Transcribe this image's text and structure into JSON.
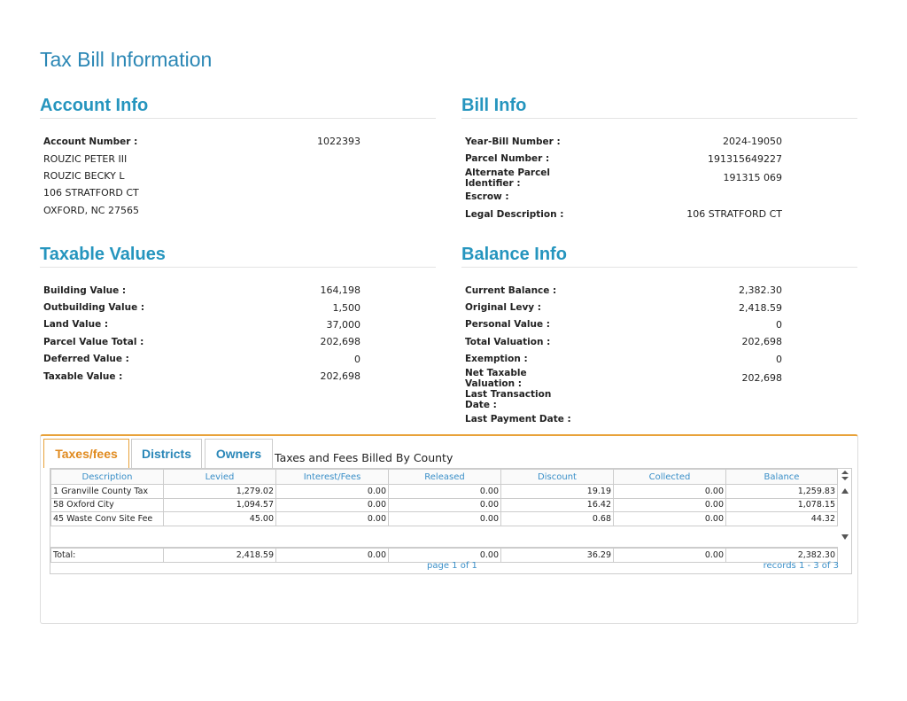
{
  "title": "Tax Bill Information",
  "account_info": {
    "heading": "Account Info",
    "rows": [
      {
        "label": "Account Number :",
        "value": "1022393"
      }
    ],
    "address": [
      "ROUZIC PETER III",
      "ROUZIC BECKY L",
      "106 STRATFORD CT",
      "OXFORD, NC 27565"
    ]
  },
  "bill_info": {
    "heading": "Bill Info",
    "rows": [
      {
        "label": "Year-Bill Number :",
        "value": "2024-19050"
      },
      {
        "label": "Parcel Number :",
        "value": "191315649227"
      },
      {
        "label": "Alternate Parcel Identifier :",
        "value": "191315 069"
      },
      {
        "label": "Escrow :"
      },
      {
        "label": "Legal Description :",
        "value": "106 STRATFORD CT"
      }
    ]
  },
  "taxable_values": {
    "heading": "Taxable Values",
    "rows": [
      {
        "label": "Building Value :",
        "value": "164,198"
      },
      {
        "label": "Outbuilding Value :",
        "value": "1,500"
      },
      {
        "label": "Land Value :",
        "value": "37,000"
      },
      {
        "label": "Parcel Value Total :",
        "value": "202,698"
      },
      {
        "label": "Deferred Value :",
        "value": "0"
      },
      {
        "label": "Taxable Value :",
        "value": "202,698"
      }
    ]
  },
  "balance_info": {
    "heading": "Balance Info",
    "rows": [
      {
        "label": "Current Balance :",
        "value": "2,382.30"
      },
      {
        "label": "Original Levy :",
        "value": "2,418.59"
      },
      {
        "label": "Personal Value :",
        "value": "0"
      },
      {
        "label": "Total Valuation :",
        "value": "202,698"
      },
      {
        "label": "Exemption :",
        "value": "0"
      },
      {
        "label": "Net Taxable Valuation :",
        "value": "202,698"
      },
      {
        "label": "Last Transaction Date :"
      },
      {
        "label": "Last Payment Date :"
      }
    ]
  },
  "tabs": [
    "Taxes/fees",
    "Districts",
    "Owners"
  ],
  "table": {
    "caption": "Taxes and Fees Billed By County",
    "columns": [
      "Description",
      "Levied",
      "Interest/Fees",
      "Released",
      "Discount",
      "Collected",
      "Balance"
    ],
    "rows": [
      [
        "1 Granville County Tax",
        "1,279.02",
        "0.00",
        "0.00",
        "19.19",
        "0.00",
        "1,259.83"
      ],
      [
        "58 Oxford City",
        "1,094.57",
        "0.00",
        "0.00",
        "16.42",
        "0.00",
        "1,078.15"
      ],
      [
        "45 Waste Conv Site Fee",
        "45.00",
        "0.00",
        "0.00",
        "0.68",
        "0.00",
        "44.32"
      ]
    ],
    "total": [
      "Total:",
      "2,418.59",
      "0.00",
      "0.00",
      "36.29",
      "0.00",
      "2,382.30"
    ],
    "pager": "page 1 of 1",
    "records": "records 1 - 3 of 3"
  }
}
